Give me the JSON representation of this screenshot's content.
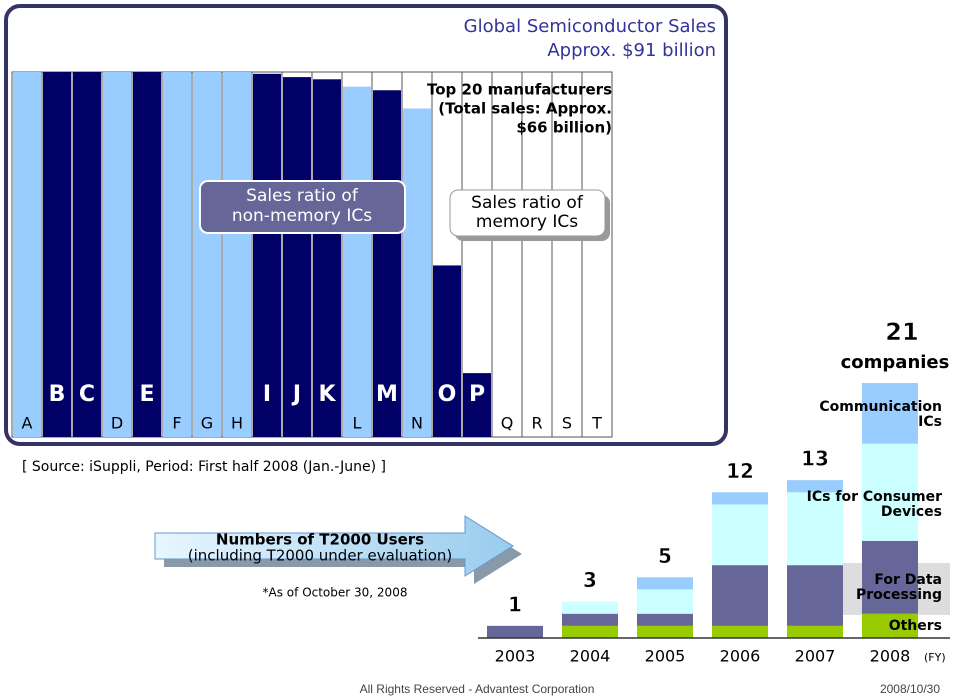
{
  "chart_data": [
    {
      "type": "bar",
      "title": "Global Semiconductor Sales",
      "subtitle": "Approx. $91 billion",
      "annotation": [
        "Top 20 manufacturers",
        "(Total sales: Approx.",
        "$66 billion)"
      ],
      "label_nonmemory": [
        "Sales ratio of",
        "non-memory ICs"
      ],
      "label_memory": [
        "Sales ratio of",
        "memory ICs"
      ],
      "categories": [
        "A",
        "B",
        "C",
        "D",
        "E",
        "F",
        "G",
        "H",
        "I",
        "J",
        "K",
        "L",
        "M",
        "N",
        "O",
        "P",
        "Q",
        "R",
        "S",
        "T"
      ],
      "values": [
        100,
        100,
        100,
        100,
        100,
        100,
        100,
        100,
        99.5,
        98.6,
        98,
        96,
        95,
        90,
        47,
        17.5,
        0,
        0,
        0,
        0
      ],
      "colors": [
        "#99ccff",
        "#000066",
        "#000066",
        "#99ccff",
        "#000066",
        "#99ccff",
        "#99ccff",
        "#99ccff",
        "#000066",
        "#000066",
        "#000066",
        "#99ccff",
        "#000066",
        "#99ccff",
        "#000066",
        "#000066",
        "#99ccff",
        "#99ccff",
        "#99ccff",
        "#99ccff"
      ],
      "ylim": [
        0,
        100
      ]
    },
    {
      "type": "stacked_bar",
      "title": [
        "Numbers of T2000 Users",
        "(including T2000 under evaluation)"
      ],
      "note": "*As of October 30, 2008",
      "x_label": "(FY)",
      "categories": [
        "2003",
        "2004",
        "2005",
        "2006",
        "2007",
        "2008"
      ],
      "series": [
        {
          "name": "Others",
          "color": "#99cc00",
          "values": [
            0,
            1,
            1,
            1,
            1,
            2
          ]
        },
        {
          "name": "For Data Processing",
          "color": "#666699",
          "values": [
            1,
            1,
            1,
            5,
            5,
            6
          ]
        },
        {
          "name": "ICs for Consumer Devices",
          "color": "#ccffff",
          "values": [
            0,
            1,
            2,
            5,
            6,
            8
          ]
        },
        {
          "name": "Communication ICs",
          "color": "#99ccff",
          "values": [
            0,
            0,
            1,
            1,
            1,
            5
          ]
        }
      ],
      "totals": [
        1,
        3,
        5,
        12,
        13,
        21
      ],
      "total_unit": "companies",
      "ylim": [
        0,
        21
      ]
    }
  ],
  "source": "[ Source: iSuppli, Period: First half 2008 (Jan.-June) ]",
  "footer": {
    "left": "All Rights Reserved - Advantest Corporation",
    "right": "2008/10/30"
  }
}
